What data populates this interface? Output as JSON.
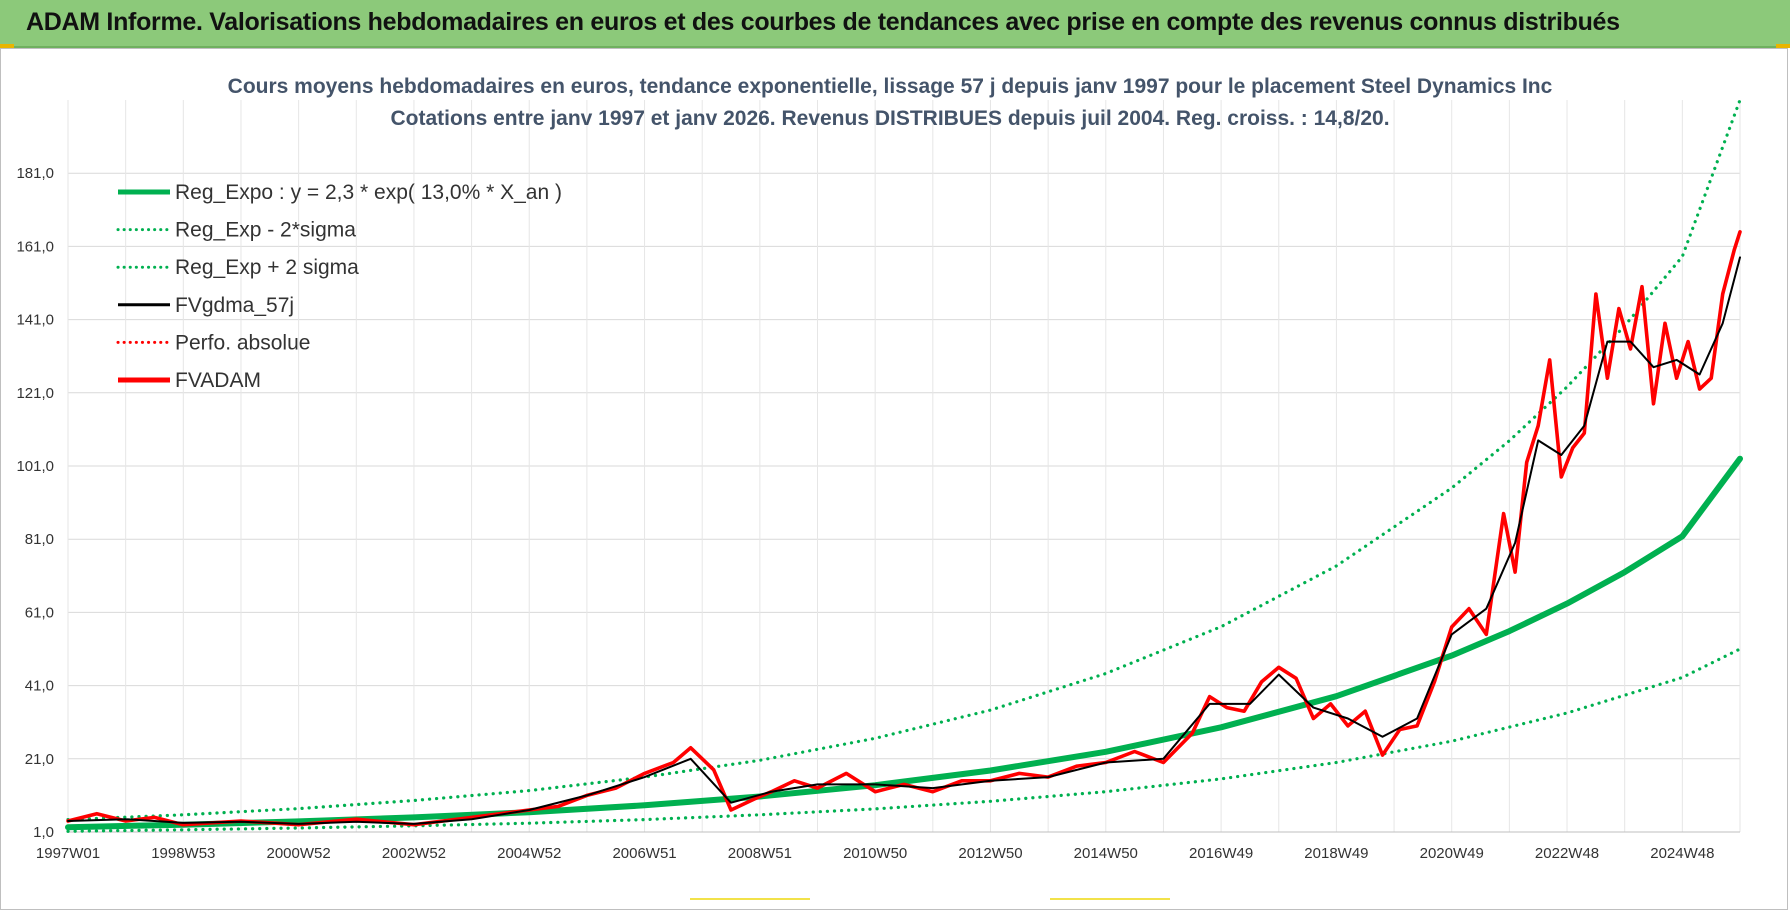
{
  "header": {
    "title": "ADAM Informe. Valorisations hebdomadaires en euros et des courbes de tendances avec prise en compte des revenus connus distribués"
  },
  "colors": {
    "header_bg": "#8cc97a",
    "green": "#00b050",
    "red": "#ff0000",
    "black": "#000000",
    "title": "#44546a",
    "grid": "#d9d9d9"
  },
  "chart_data": {
    "type": "line",
    "title_line1": "Cours moyens hebdomadaires en euros, tendance exponentielle, lissage 57 j depuis janv 1997  pour le placement Steel Dynamics Inc",
    "title_line2": "Cotations entre janv 1997 et janv 2026. Revenus DISTRIBUES depuis juil 2004. Reg.  croiss. : 14,8/20.",
    "xlabel": "",
    "ylabel": "",
    "xlim": [
      1997.0,
      2026.0
    ],
    "ylim": [
      1.0,
      201.0
    ],
    "y_ticks": [
      "1,0",
      "21,0",
      "41,0",
      "61,0",
      "81,0",
      "101,0",
      "121,0",
      "141,0",
      "161,0",
      "181,0"
    ],
    "x_ticks": [
      {
        "label": "1997W01",
        "year": 1997.0
      },
      {
        "label": "1998W53",
        "year": 1999.0
      },
      {
        "label": "2000W52",
        "year": 2001.0
      },
      {
        "label": "2002W52",
        "year": 2003.0
      },
      {
        "label": "2004W52",
        "year": 2005.0
      },
      {
        "label": "2006W51",
        "year": 2007.0
      },
      {
        "label": "2008W51",
        "year": 2009.0
      },
      {
        "label": "2010W50",
        "year": 2011.0
      },
      {
        "label": "2012W50",
        "year": 2013.0
      },
      {
        "label": "2014W50",
        "year": 2015.0
      },
      {
        "label": "2016W49",
        "year": 2017.0
      },
      {
        "label": "2018W49",
        "year": 2019.0
      },
      {
        "label": "2020W49",
        "year": 2021.0
      },
      {
        "label": "2022W48",
        "year": 2023.0
      },
      {
        "label": "2024W48",
        "year": 2025.0
      }
    ],
    "legend": [
      {
        "label": "Reg_Expo : y = 2,3 * exp( 13,0% *  X_an )",
        "color": "#00b050",
        "style": "solid-thick"
      },
      {
        "label": "Reg_Exp - 2*sigma",
        "color": "#00b050",
        "style": "dotted"
      },
      {
        "label": "Reg_Exp + 2 sigma",
        "color": "#00b050",
        "style": "dotted"
      },
      {
        "label": "FVgdma_57j",
        "color": "#000000",
        "style": "solid"
      },
      {
        "label": "Perfo. absolue",
        "color": "#ff0000",
        "style": "dotted"
      },
      {
        "label": "FVADAM",
        "color": "#ff0000",
        "style": "solid-thick"
      }
    ],
    "series": [
      {
        "name": "Reg_Expo",
        "x": [
          1997,
          1999,
          2001,
          2003,
          2005,
          2007,
          2009,
          2011,
          2013,
          2015,
          2017,
          2019,
          2021,
          2022,
          2023,
          2024,
          2025,
          2026
        ],
        "values": [
          2.3,
          3.0,
          3.9,
          5.0,
          6.4,
          8.3,
          10.7,
          13.8,
          17.8,
          22.9,
          29.6,
          38.1,
          49.2,
          55.9,
          63.4,
          72.0,
          81.8,
          103.0
        ]
      },
      {
        "name": "Reg_Exp - 2*sigma",
        "x": [
          1997,
          1999,
          2001,
          2003,
          2005,
          2007,
          2009,
          2011,
          2013,
          2015,
          2017,
          2019,
          2021,
          2023,
          2025,
          2026
        ],
        "values": [
          1.2,
          1.6,
          2.1,
          2.7,
          3.4,
          4.4,
          5.7,
          7.3,
          9.4,
          12.0,
          15.5,
          20.0,
          25.8,
          33.5,
          43.2,
          51.0
        ]
      },
      {
        "name": "Reg_Exp + 2 sigma",
        "x": [
          1997,
          1999,
          2001,
          2003,
          2005,
          2007,
          2009,
          2011,
          2013,
          2015,
          2017,
          2019,
          2021,
          2022,
          2023,
          2024,
          2025,
          2026
        ],
        "values": [
          4.4,
          5.7,
          7.4,
          9.6,
          12.3,
          16.0,
          20.6,
          26.6,
          34.3,
          44.3,
          57.1,
          73.7,
          95.0,
          107.9,
          122.6,
          139.3,
          158.2,
          201.0
        ]
      },
      {
        "name": "FVADAM",
        "x": [
          1997,
          1997.5,
          1998,
          1998.5,
          1999,
          2000,
          2001,
          2002,
          2003,
          2004,
          2005,
          2005.5,
          2006,
          2006.5,
          2007,
          2007.5,
          2007.8,
          2008.2,
          2008.5,
          2008.9,
          2009.2,
          2009.6,
          2010,
          2010.5,
          2011,
          2011.5,
          2012,
          2012.5,
          2013,
          2013.5,
          2014,
          2014.5,
          2015,
          2015.5,
          2016,
          2016.5,
          2016.8,
          2017.1,
          2017.4,
          2017.7,
          2018,
          2018.3,
          2018.6,
          2018.9,
          2019.2,
          2019.5,
          2019.8,
          2020.1,
          2020.4,
          2020.7,
          2021,
          2021.3,
          2021.6,
          2021.9,
          2022.1,
          2022.3,
          2022.5,
          2022.7,
          2022.9,
          2023.1,
          2023.3,
          2023.5,
          2023.7,
          2023.9,
          2024.1,
          2024.3,
          2024.5,
          2024.7,
          2024.9,
          2025.1,
          2025.3,
          2025.5,
          2025.7,
          2025.9,
          2026
        ],
        "values": [
          4.0,
          6.0,
          4.0,
          5.0,
          3.0,
          4.0,
          3.0,
          4.5,
          3.0,
          5.0,
          7.0,
          8.0,
          11.0,
          13.0,
          17.0,
          20.0,
          24.0,
          18.0,
          7.0,
          10.0,
          12.0,
          15.0,
          13.0,
          17.0,
          12.0,
          14.0,
          12.0,
          15.0,
          15.0,
          17.0,
          16.0,
          19.0,
          20.0,
          23.0,
          20.0,
          28.0,
          38.0,
          35.0,
          34.0,
          42.0,
          46.0,
          43.0,
          32.0,
          36.0,
          30.0,
          34.0,
          22.0,
          29.0,
          30.0,
          42.0,
          57.0,
          62.0,
          55.0,
          88.0,
          72.0,
          102.0,
          112.0,
          130.0,
          98.0,
          106.0,
          110.0,
          148.0,
          125.0,
          144.0,
          133.0,
          150.0,
          118.0,
          140.0,
          125.0,
          135.0,
          122.0,
          125.0,
          148.0,
          160.0,
          165.0
        ]
      },
      {
        "name": "FVgdma_57j",
        "x": [
          1997,
          1998,
          1999,
          2000,
          2001,
          2002,
          2003,
          2004,
          2005,
          2006,
          2007,
          2007.8,
          2008.5,
          2009.2,
          2010,
          2011,
          2012,
          2013,
          2014,
          2015,
          2016,
          2016.8,
          2017.5,
          2018,
          2018.6,
          2019.2,
          2019.8,
          2020.4,
          2021,
          2021.6,
          2022.1,
          2022.5,
          2022.9,
          2023.3,
          2023.7,
          2024.1,
          2024.5,
          2024.9,
          2025.3,
          2025.7,
          2026
        ],
        "values": [
          4.0,
          4.5,
          3.5,
          3.8,
          3.2,
          3.8,
          3.2,
          4.5,
          7.0,
          11.0,
          16.0,
          21.0,
          9.0,
          12.0,
          14.0,
          14.0,
          13.0,
          15.0,
          16.0,
          20.0,
          21.0,
          36.0,
          36.0,
          44.0,
          35.0,
          32.0,
          27.0,
          32.0,
          55.0,
          62.0,
          80.0,
          108.0,
          104.0,
          112.0,
          135.0,
          135.0,
          128.0,
          130.0,
          126.0,
          140.0,
          158.0
        ]
      }
    ]
  }
}
